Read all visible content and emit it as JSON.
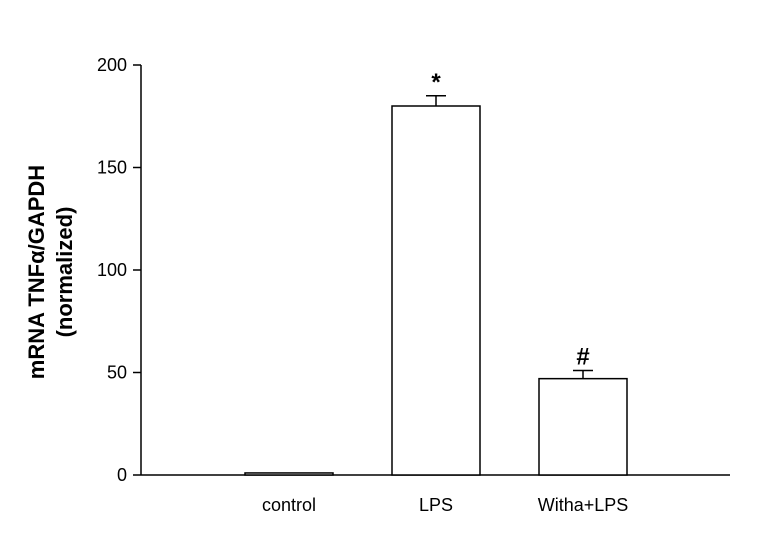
{
  "chart_data": {
    "type": "bar",
    "categories": [
      "control",
      "LPS",
      "Witha+LPS"
    ],
    "values": [
      1,
      180,
      47
    ],
    "errors": [
      0,
      5,
      4
    ],
    "annotations": [
      "",
      "*",
      "#"
    ],
    "title": "",
    "xlabel": "",
    "ylabel_line1": "mRNA TNFα/GAPDH",
    "ylabel_line2": "(normalized)",
    "ylim": [
      0,
      200
    ],
    "yticks": [
      0,
      50,
      100,
      150,
      200
    ],
    "grid": false,
    "bar_fill": "#ffffff",
    "bar_stroke": "#000000"
  }
}
